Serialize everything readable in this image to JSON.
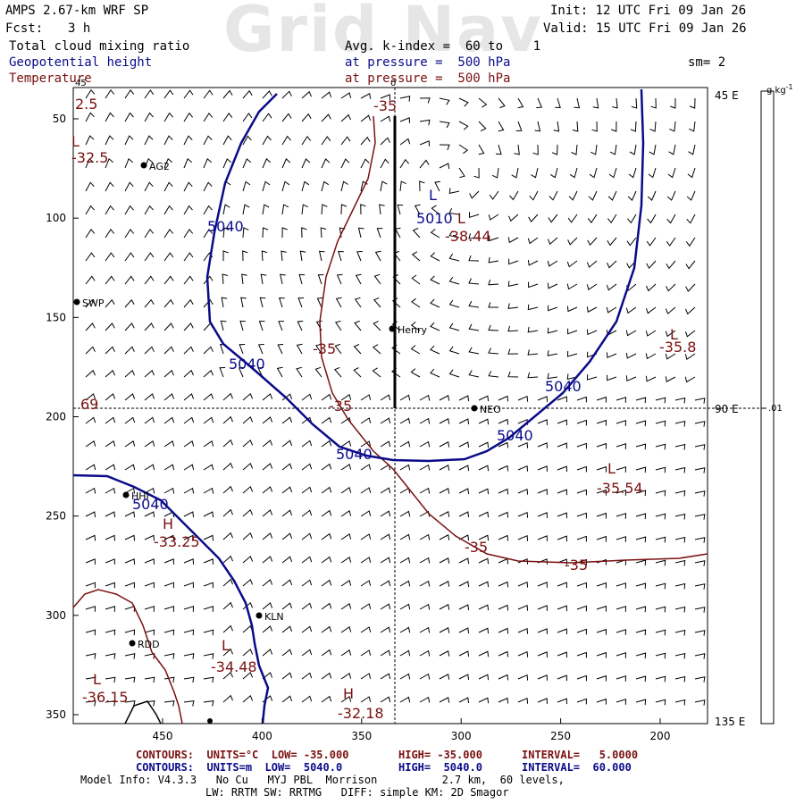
{
  "watermark": "Grid Nav",
  "header": {
    "product": "AMPS 2.67-km WRF SP",
    "fcst_label": "Fcst:",
    "fcst_value": "3 h",
    "init": "Init: 12 UTC Fri 09 Jan 26",
    "valid": "Valid: 15 UTC Fri 09 Jan 26",
    "field1": "Total cloud mixing ratio",
    "field1_level": "Avg. k-index =  60 to    1",
    "field2": "Geopotential height",
    "field2_level": "at pressure =  500 hPa",
    "field3": "Temperature",
    "field3_level": "at pressure =  500 hPa",
    "smoothing": "sm= 2"
  },
  "colors": {
    "geopotential": "#0b0b8a",
    "temperature": "#7a1010",
    "barbs": "#000000"
  },
  "map": {
    "y_ticks": [
      "50",
      "100",
      "150",
      "200",
      "250",
      "300",
      "350"
    ],
    "x_ticks": [
      "450",
      "400",
      "350",
      "300",
      "250",
      "200"
    ],
    "lon_labels": [
      "45 E",
      "90 E",
      "135 E"
    ],
    "top_lon_label": "0",
    "left_lon_label": "45",
    "colorbar_unit": "g kg",
    "colorbar_unit_exp": "-1",
    "colorbar_value": ".01",
    "stations": [
      {
        "name": "AG2"
      },
      {
        "name": "SWP"
      },
      {
        "name": "Henry"
      },
      {
        "name": "NEO"
      },
      {
        "name": "HHI"
      },
      {
        "name": "KLN"
      },
      {
        "name": "RDD"
      }
    ],
    "height_labels": [
      "5040",
      "5040",
      "5010",
      "5040",
      "5040",
      "5040",
      "5040"
    ],
    "temp_labels": [
      "-35",
      "-35",
      "-35",
      "-35",
      "-35",
      "-35"
    ],
    "extrema": [
      {
        "type": "L",
        "value": "-32.5"
      },
      {
        "type": "L",
        "value": "5010"
      },
      {
        "type": "L",
        "value": "-38.44"
      },
      {
        "type": "L",
        "value": "-35.8"
      },
      {
        "type": "L",
        "value": "-35.54"
      },
      {
        "type": "H",
        "value": "-33.25"
      },
      {
        "type": "L",
        "value": "-34.48"
      },
      {
        "type": "L",
        "value": "-36.15"
      },
      {
        "type": "H",
        "value": "-32.18"
      },
      {
        "type": "",
        "value": "69"
      },
      {
        "type": "",
        "value": "2.5"
      }
    ]
  },
  "footer": {
    "line1_label": "CONTOURS:  UNITS=°C  LOW= -35.000",
    "line1_high": "HIGH= -35.000",
    "line1_int": "INTERVAL=   5.0000",
    "line2_label": "CONTOURS:  UNITS=m  LOW=  5040.0",
    "line2_high": "HIGH=  5040.0",
    "line2_int": "INTERVAL=  60.000",
    "model_info": "Model Info: V4.3.3   No Cu   MYJ PBL  Morrison          2.7 km,  60 levels,",
    "model_info2": "LW: RRTM SW: RRTMG   DIFF: simple KM: 2D Smagor"
  }
}
